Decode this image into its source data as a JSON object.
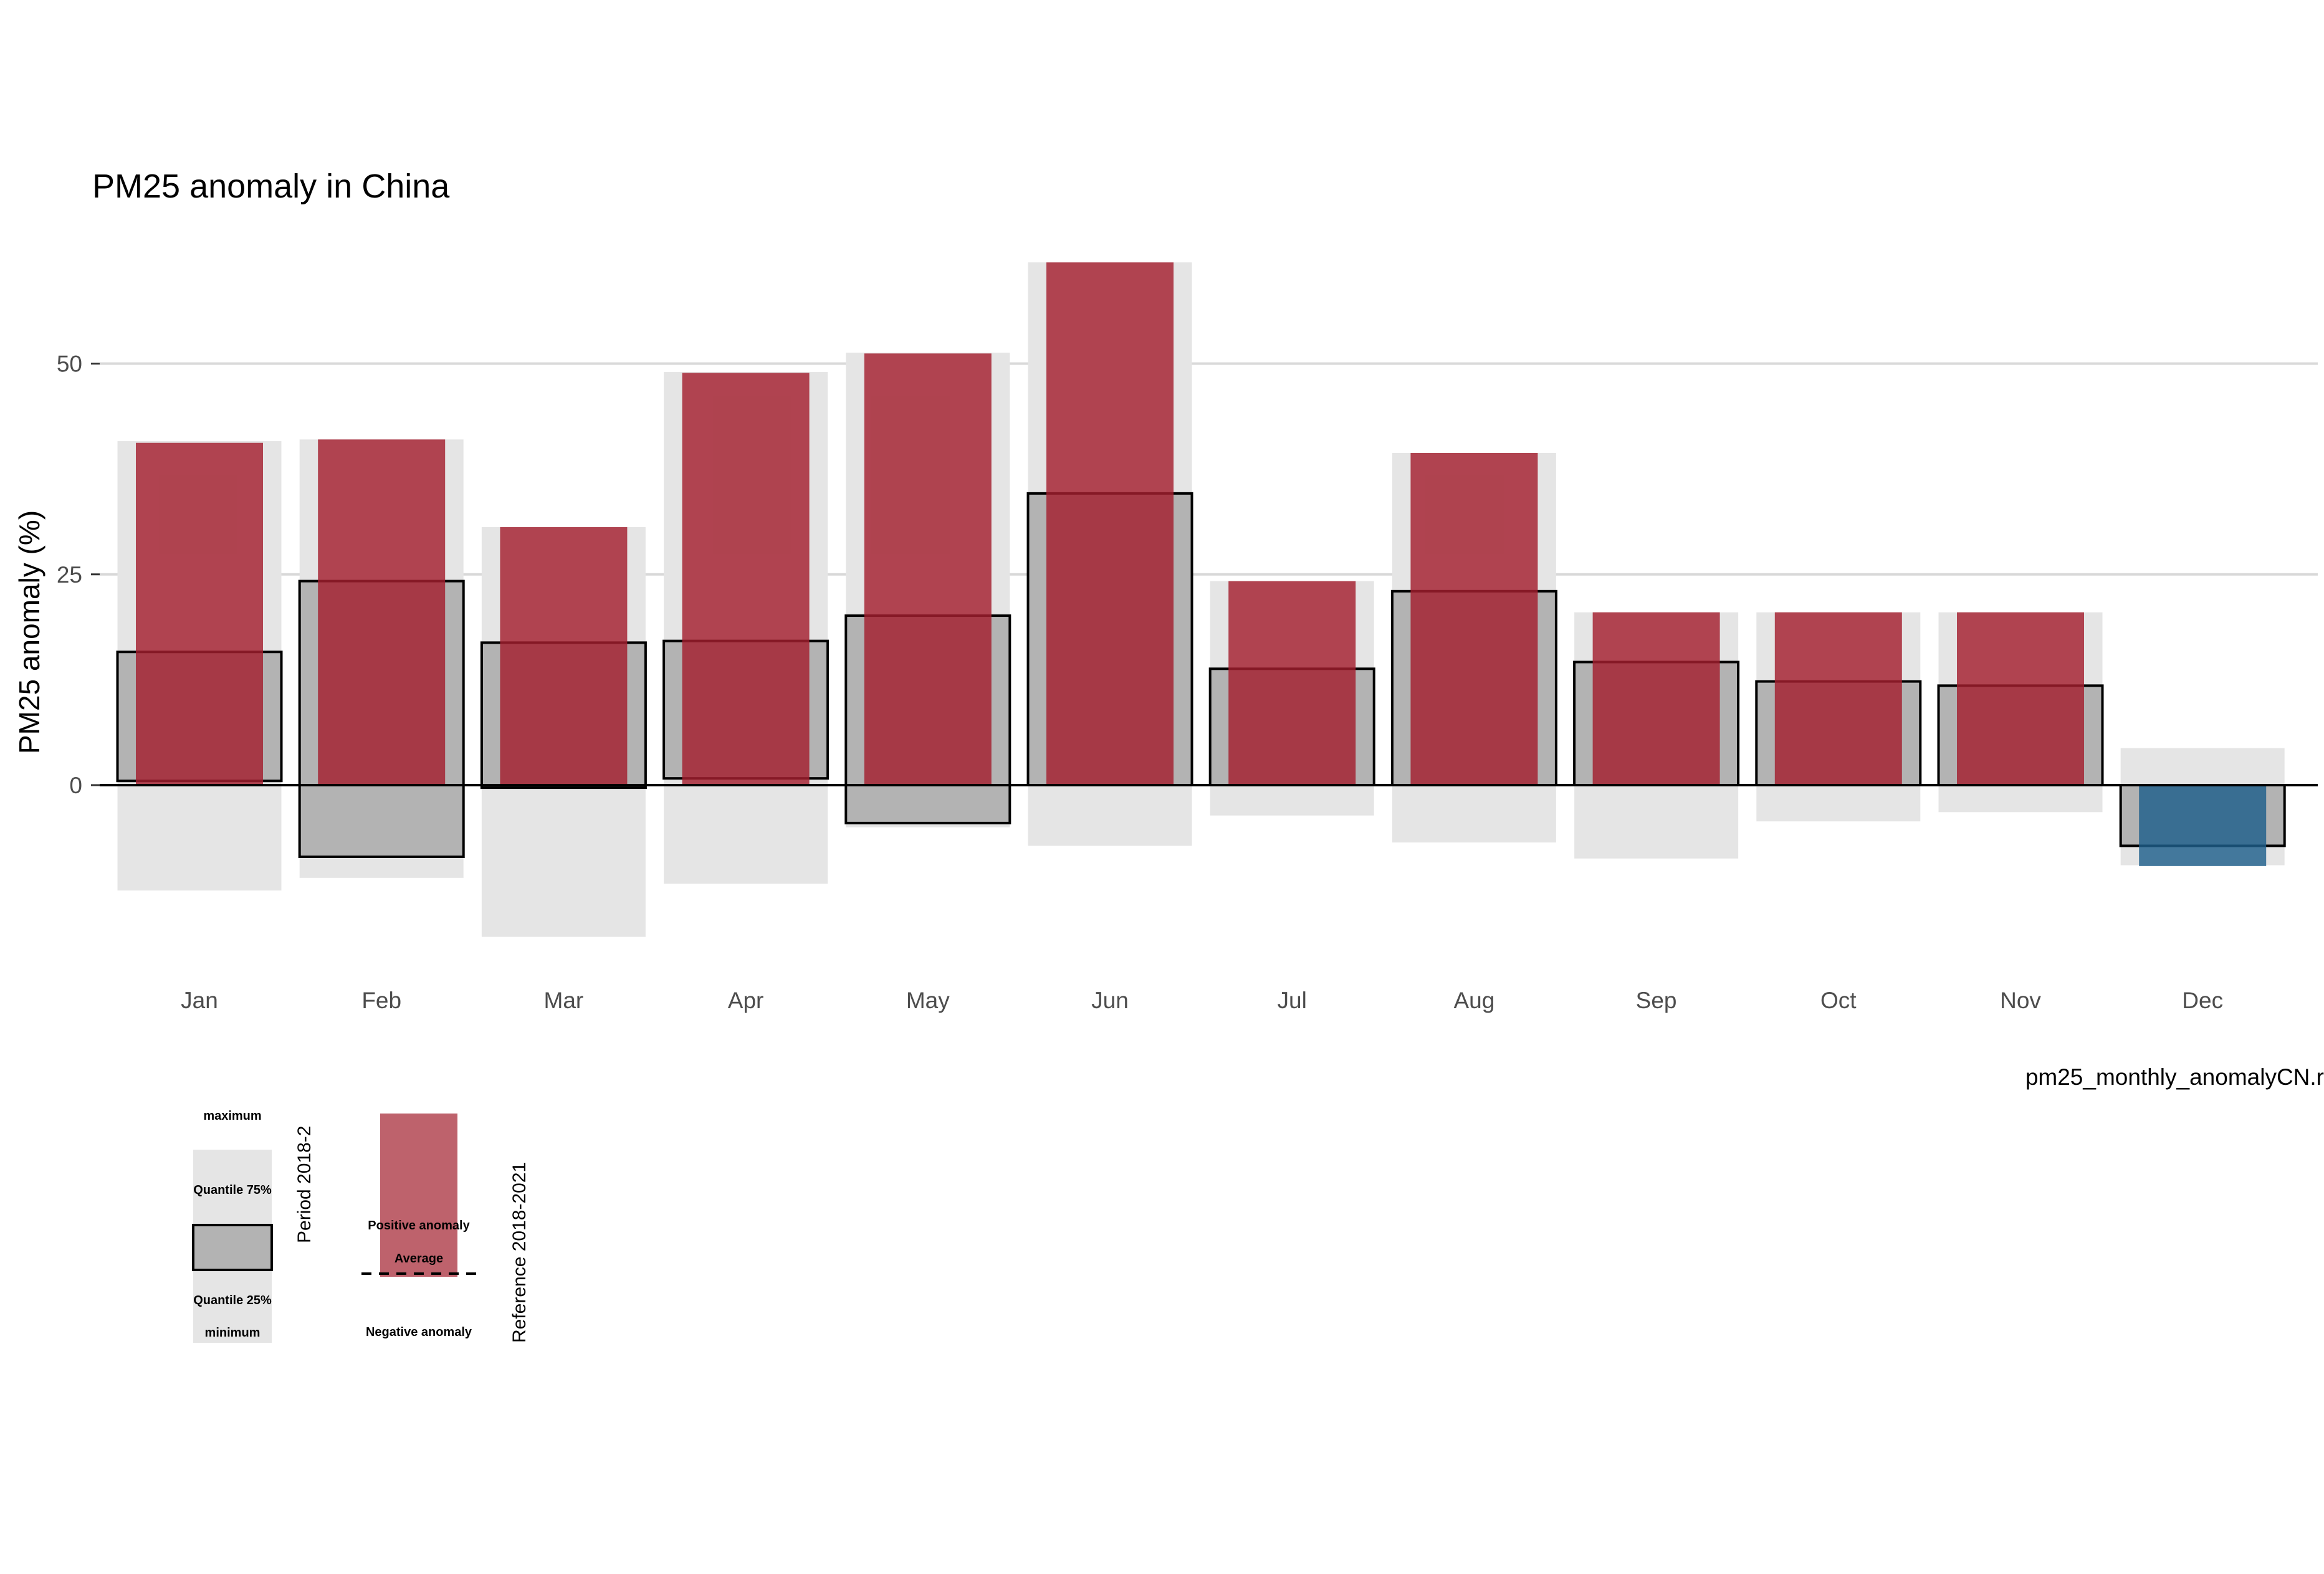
{
  "chart_data": {
    "type": "bar",
    "title": "PM25 anomaly in China",
    "ylabel": "PM25 anomaly (%)",
    "xlabel": "",
    "caption": "pm25_monthly_anomalyCN.r",
    "ylim": [
      -23,
      63
    ],
    "yticks": [
      0,
      25,
      50
    ],
    "grid": true,
    "legend_position": "bottom-left",
    "categories": [
      "Jan",
      "Feb",
      "Mar",
      "Apr",
      "May",
      "Jun",
      "Jul",
      "Aug",
      "Sep",
      "Oct",
      "Nov",
      "Dec"
    ],
    "reference_range": {
      "min": [
        -12.5,
        -11.0,
        -18.0,
        -11.7,
        -5.0,
        -7.2,
        -3.6,
        -6.8,
        -8.7,
        -4.3,
        -3.2,
        -9.5
      ],
      "q25": [
        0.5,
        -8.5,
        -0.3,
        0.8,
        -4.5,
        0.0,
        0.0,
        0.0,
        0.0,
        0.0,
        0.0,
        -7.2
      ],
      "q75": [
        15.8,
        24.2,
        16.9,
        17.1,
        20.1,
        34.6,
        13.8,
        23.0,
        14.6,
        12.3,
        11.8,
        0.0
      ],
      "max": [
        40.8,
        41.0,
        30.6,
        49.0,
        51.3,
        62.0,
        24.2,
        39.4,
        20.5,
        20.5,
        20.5,
        4.4
      ]
    },
    "anomaly_2021": [
      40.6,
      41.0,
      30.6,
      48.9,
      51.2,
      62.0,
      24.2,
      39.4,
      20.5,
      20.5,
      20.5,
      -9.6
    ],
    "colors": {
      "positive": "#a31f2e",
      "negative": "#1f5f8b",
      "min_max": "#e5e5e5",
      "quantile": "#b3b3b3",
      "grid": "#d9d9d9"
    },
    "legend": {
      "period_title": "Period 2018-2",
      "reference_title": "Reference 2018-2021",
      "labels": {
        "maximum": "maximum",
        "q75": "Quantile 75%",
        "q25": "Quantile 25%",
        "minimum": "minimum",
        "positive": "Positive anomaly",
        "average": "Average",
        "negative": "Negative anomaly"
      }
    }
  }
}
